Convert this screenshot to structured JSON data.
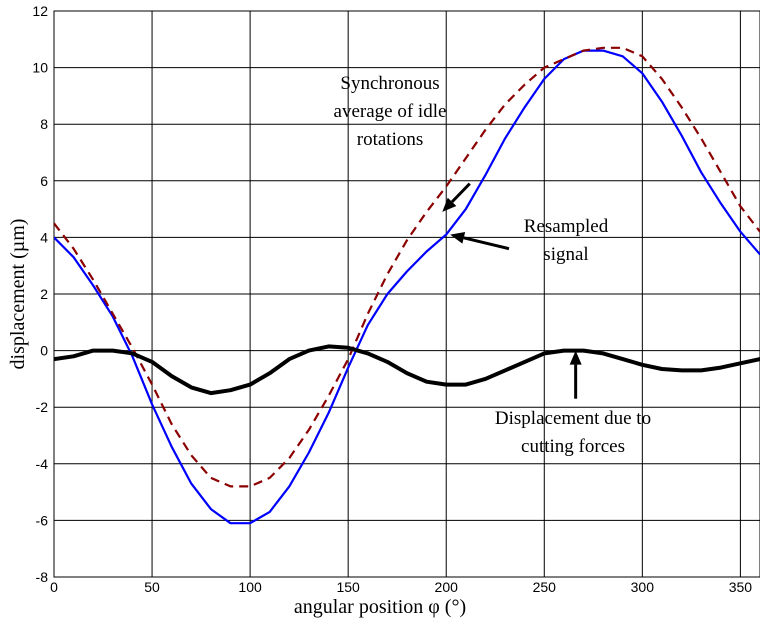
{
  "chart_data": {
    "type": "line",
    "xlabel": "angular position φ (°)",
    "ylabel": "displacement  (µm)",
    "xlim": [
      0,
      360
    ],
    "ylim": [
      -8,
      12
    ],
    "xticks": [
      0,
      50,
      100,
      150,
      200,
      250,
      300,
      350
    ],
    "yticks": [
      -8,
      -6,
      -4,
      -2,
      0,
      2,
      4,
      6,
      8,
      10,
      12
    ],
    "grid": true,
    "series": [
      {
        "color": "#0000ff",
        "style": "solid",
        "x": [
          0,
          10,
          20,
          30,
          40,
          50,
          60,
          70,
          80,
          90,
          100,
          110,
          120,
          130,
          140,
          150,
          160,
          170,
          180,
          190,
          200,
          210,
          220,
          230,
          240,
          250,
          260,
          270,
          280,
          290,
          300,
          310,
          320,
          330,
          340,
          350,
          360
        ],
        "y": [
          4.0,
          3.3,
          2.3,
          1.2,
          -0.2,
          -1.9,
          -3.4,
          -4.7,
          -5.6,
          -6.1,
          -6.1,
          -5.7,
          -4.8,
          -3.6,
          -2.2,
          -0.6,
          0.9,
          2.0,
          2.8,
          3.5,
          4.1,
          5.0,
          6.2,
          7.5,
          8.6,
          9.6,
          10.3,
          10.6,
          10.6,
          10.4,
          9.8,
          8.8,
          7.6,
          6.3,
          5.2,
          4.2,
          3.4
        ]
      },
      {
        "color": "#8b0000",
        "style": "dashed",
        "x": [
          0,
          10,
          20,
          30,
          40,
          50,
          60,
          70,
          80,
          90,
          100,
          110,
          120,
          130,
          140,
          150,
          160,
          170,
          180,
          190,
          200,
          210,
          220,
          230,
          240,
          250,
          260,
          270,
          280,
          290,
          300,
          310,
          320,
          330,
          340,
          350,
          360
        ],
        "y": [
          4.5,
          3.6,
          2.5,
          1.3,
          0.1,
          -1.2,
          -2.6,
          -3.7,
          -4.5,
          -4.8,
          -4.8,
          -4.5,
          -3.8,
          -2.8,
          -1.6,
          -0.3,
          1.3,
          2.7,
          3.9,
          4.9,
          5.8,
          6.8,
          7.8,
          8.7,
          9.4,
          10.0,
          10.3,
          10.6,
          10.7,
          10.7,
          10.4,
          9.6,
          8.6,
          7.5,
          6.3,
          5.1,
          4.2
        ]
      },
      {
        "color": "#000000",
        "style": "thick",
        "x": [
          0,
          10,
          20,
          30,
          40,
          50,
          60,
          70,
          80,
          90,
          100,
          110,
          120,
          130,
          140,
          150,
          160,
          170,
          180,
          190,
          200,
          210,
          220,
          230,
          240,
          250,
          260,
          270,
          280,
          290,
          300,
          310,
          320,
          330,
          340,
          350,
          360
        ],
        "y": [
          -0.3,
          -0.2,
          0.0,
          0.0,
          -0.1,
          -0.4,
          -0.9,
          -1.3,
          -1.5,
          -1.4,
          -1.2,
          -0.8,
          -0.3,
          0.0,
          0.15,
          0.1,
          -0.1,
          -0.4,
          -0.8,
          -1.1,
          -1.2,
          -1.2,
          -1.0,
          -0.7,
          -0.4,
          -0.1,
          0.0,
          0.0,
          -0.1,
          -0.3,
          -0.5,
          -0.65,
          -0.7,
          -0.7,
          -0.6,
          -0.45,
          -0.3
        ]
      }
    ],
    "annotations": [
      {
        "id": "sync",
        "lines": [
          "Synchronous",
          "average of idle",
          "rotations"
        ],
        "target": [
          198,
          4.9
        ]
      },
      {
        "id": "resampled",
        "lines": [
          "Resampled",
          "signal"
        ],
        "target": [
          202,
          4.1
        ]
      },
      {
        "id": "cutting",
        "lines": [
          "Displacement due to",
          "cutting forces"
        ],
        "target": [
          266,
          0.0
        ]
      }
    ]
  }
}
